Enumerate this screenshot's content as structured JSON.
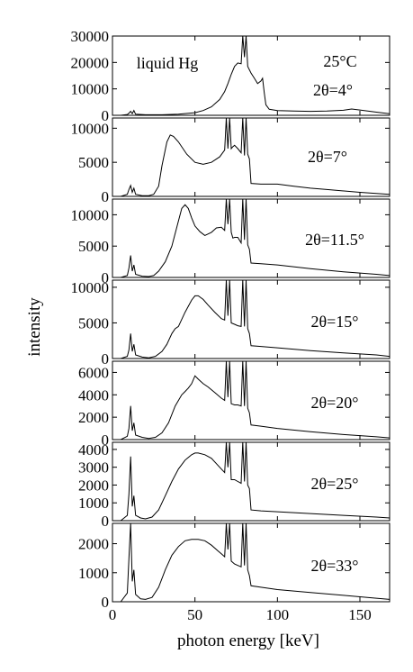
{
  "chart_data": {
    "type": "line",
    "xlabel": "photon energy [keV]",
    "ylabel": "intensity",
    "xlim": [
      0,
      168
    ],
    "xticks": [
      "0",
      "50",
      "100",
      "150"
    ],
    "xtick_values": [
      0,
      50,
      100,
      150
    ],
    "panels": [
      {
        "name": "2θ=4°",
        "label": "2θ=4°",
        "extra_labels": [
          "liquid Hg",
          "25°C"
        ],
        "ylim": [
          0,
          30000
        ],
        "yticks": [
          "0",
          "10000",
          "20000",
          "30000"
        ],
        "ytick_values": [
          0,
          10000,
          20000,
          30000
        ],
        "series": [
          {
            "x": [
              0,
              5,
              9,
              10,
              11,
              12,
              13,
              14,
              20,
              30,
              40,
              50,
              55,
              60,
              65,
              68,
              70,
              72,
              74,
              76,
              78,
              79,
              80,
              81,
              82,
              84,
              86,
              88,
              90,
              91,
              92,
              93,
              95,
              100,
              110,
              120,
              130,
              140,
              145,
              150,
              160,
              168
            ],
            "y": [
              0,
              0,
              300,
              800,
              1500,
              600,
              1800,
              400,
              200,
              200,
              400,
              1000,
              1800,
              3200,
              6000,
              9000,
              12000,
              15500,
              18500,
              19800,
              19500,
              30000,
              22000,
              30000,
              18500,
              16000,
              14000,
              12000,
              13000,
              14000,
              8500,
              4000,
              2300,
              1800,
              1600,
              1500,
              1600,
              1900,
              2400,
              2000,
              1200,
              600
            ]
          }
        ]
      },
      {
        "name": "2θ=7°",
        "label": "2θ=7°",
        "ylim": [
          0,
          11500
        ],
        "yticks": [
          "0",
          "5000",
          "10000"
        ],
        "ytick_values": [
          0,
          5000,
          10000
        ],
        "series": [
          {
            "x": [
              0,
              5,
              9,
              10,
              11,
              12,
              13,
              14,
              18,
              22,
              25,
              28,
              30,
              33,
              35,
              37,
              40,
              45,
              50,
              55,
              60,
              65,
              68,
              69,
              70,
              71,
              72,
              73,
              74,
              76,
              78,
              79,
              80,
              81,
              82,
              83,
              84,
              90,
              100,
              110,
              120,
              130,
              150,
              168
            ],
            "y": [
              0,
              0,
              300,
              1000,
              1600,
              600,
              1200,
              300,
              100,
              100,
              300,
              1500,
              4500,
              8000,
              9000,
              8800,
              8000,
              6200,
              5000,
              4700,
              5000,
              5800,
              6800,
              11500,
              7000,
              11500,
              7000,
              7300,
              7500,
              7000,
              6400,
              11500,
              6000,
              11500,
              6200,
              5500,
              1900,
              1800,
              1800,
              1500,
              1200,
              1000,
              600,
              300
            ]
          }
        ]
      },
      {
        "name": "2θ=11.5°",
        "label": "2θ=11.5°",
        "ylim": [
          0,
          12500
        ],
        "yticks": [
          "0",
          "5000",
          "10000"
        ],
        "ytick_values": [
          0,
          5000,
          10000
        ],
        "series": [
          {
            "x": [
              0,
              5,
              9,
              10,
              11,
              12,
              13,
              14,
              18,
              22,
              25,
              28,
              32,
              36,
              40,
              42,
              44,
              46,
              48,
              50,
              53,
              56,
              60,
              63,
              66,
              68,
              69,
              70,
              71,
              72,
              73,
              74,
              76,
              78,
              79,
              80,
              81,
              82,
              83,
              84,
              90,
              100,
              120,
              140,
              160,
              168
            ],
            "y": [
              0,
              0,
              300,
              1500,
              3500,
              1000,
              2000,
              500,
              200,
              150,
              300,
              1000,
              2500,
              5000,
              9000,
              11000,
              11600,
              11000,
              9500,
              8200,
              7300,
              6700,
              7200,
              7900,
              8000,
              7500,
              12500,
              8500,
              12500,
              7200,
              6300,
              6400,
              6400,
              5500,
              12500,
              6000,
              12500,
              5200,
              4500,
              2300,
              2200,
              2000,
              1400,
              900,
              500,
              300
            ]
          }
        ]
      },
      {
        "name": "2θ=15°",
        "label": "2θ=15°",
        "ylim": [
          0,
          11000
        ],
        "yticks": [
          "0",
          "5000",
          "10000"
        ],
        "ytick_values": [
          0,
          5000,
          10000
        ],
        "series": [
          {
            "x": [
              0,
              5,
              9,
              10,
              11,
              12,
              13,
              14,
              18,
              22,
              26,
              30,
              33,
              36,
              38,
              40,
              44,
              48,
              50,
              52,
              55,
              58,
              62,
              66,
              68,
              69,
              70,
              71,
              72,
              74,
              76,
              78,
              79,
              80,
              81,
              82,
              83,
              84,
              90,
              100,
              120,
              140,
              160,
              168
            ],
            "y": [
              0,
              0,
              300,
              1200,
              3500,
              1000,
              2000,
              500,
              200,
              100,
              300,
              1000,
              2000,
              3500,
              4200,
              4500,
              6500,
              8200,
              8800,
              8800,
              8300,
              7500,
              6500,
              5600,
              5400,
              11000,
              6000,
              11000,
              5000,
              4800,
              4600,
              4500,
              11000,
              4500,
              11000,
              4200,
              3500,
              1800,
              1700,
              1500,
              1100,
              800,
              500,
              300
            ]
          }
        ]
      },
      {
        "name": "2θ=20°",
        "label": "2θ=20°",
        "ylim": [
          0,
          7000
        ],
        "yticks": [
          "0",
          "2000",
          "4000",
          "6000"
        ],
        "ytick_values": [
          0,
          2000,
          4000,
          6000
        ],
        "series": [
          {
            "x": [
              0,
              5,
              9,
              10,
              11,
              12,
              13,
              14,
              18,
              22,
              26,
              30,
              34,
              38,
              42,
              44,
              46,
              48,
              50,
              52,
              55,
              58,
              62,
              66,
              68,
              69,
              70,
              71,
              72,
              74,
              76,
              78,
              79,
              80,
              81,
              82,
              83,
              84,
              90,
              100,
              120,
              140,
              160,
              168
            ],
            "y": [
              0,
              0,
              300,
              1000,
              3000,
              800,
              1500,
              400,
              200,
              100,
              200,
              600,
              1500,
              3000,
              4000,
              4300,
              4600,
              5000,
              5700,
              5400,
              5000,
              4700,
              4200,
              3700,
              3500,
              7000,
              3800,
              7000,
              3200,
              3100,
              3100,
              3000,
              7000,
              3000,
              7000,
              2800,
              2400,
              1300,
              1200,
              1000,
              700,
              450,
              250,
              150
            ]
          }
        ]
      },
      {
        "name": "2θ=25°",
        "label": "2θ=25°",
        "ylim": [
          0,
          4400
        ],
        "yticks": [
          "0",
          "1000",
          "2000",
          "3000",
          "4000"
        ],
        "ytick_values": [
          0,
          1000,
          2000,
          3000,
          4000
        ],
        "series": [
          {
            "x": [
              0,
              5,
              9,
              10,
              11,
              12,
              13,
              14,
              17,
              20,
              24,
              28,
              32,
              36,
              40,
              44,
              48,
              50,
              52,
              56,
              60,
              64,
              66,
              68,
              69,
              70,
              71,
              72,
              74,
              76,
              78,
              79,
              80,
              81,
              82,
              83,
              84,
              90,
              100,
              120,
              140,
              160,
              168
            ],
            "y": [
              0,
              0,
              300,
              1500,
              3600,
              800,
              1400,
              300,
              150,
              100,
              200,
              600,
              1400,
              2200,
              2900,
              3400,
              3700,
              3800,
              3800,
              3700,
              3500,
              3100,
              2900,
              2700,
              4400,
              3000,
              4400,
              2300,
              2300,
              2200,
              2100,
              4400,
              2200,
              4400,
              2000,
              1800,
              600,
              550,
              500,
              400,
              300,
              200,
              150
            ]
          }
        ]
      },
      {
        "name": "2θ=33°",
        "label": "2θ=33°",
        "ylim": [
          0,
          2700
        ],
        "yticks": [
          "0",
          "1000",
          "2000"
        ],
        "ytick_values": [
          0,
          1000,
          2000
        ],
        "series": [
          {
            "x": [
              0,
              5,
              9,
              10,
              11,
              12,
              13,
              14,
              17,
              20,
              24,
              28,
              32,
              36,
              40,
              44,
              48,
              52,
              56,
              60,
              64,
              66,
              68,
              69,
              70,
              71,
              72,
              74,
              76,
              78,
              79,
              80,
              81,
              82,
              83,
              84,
              90,
              100,
              120,
              140,
              160,
              168
            ],
            "y": [
              0,
              0,
              300,
              1500,
              2700,
              700,
              1100,
              250,
              100,
              80,
              150,
              500,
              1100,
              1600,
              1900,
              2100,
              2150,
              2150,
              2100,
              1950,
              1750,
              1650,
              1550,
              2700,
              1800,
              2700,
              1400,
              1300,
              1250,
              1200,
              2700,
              1250,
              2700,
              1100,
              900,
              550,
              500,
              420,
              320,
              220,
              120,
              80
            ]
          }
        ]
      }
    ]
  }
}
